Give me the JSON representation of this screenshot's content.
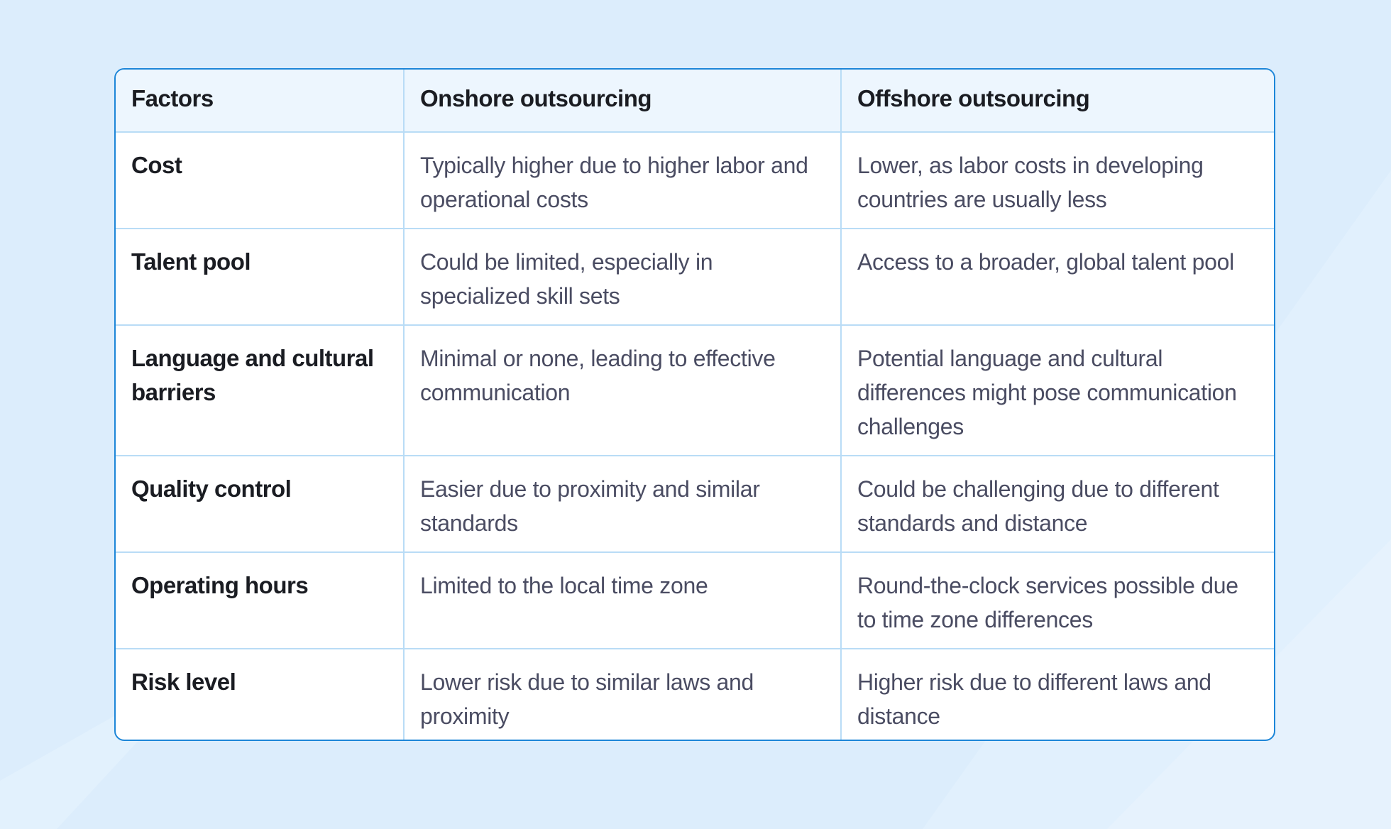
{
  "table": {
    "headers": [
      "Factors",
      "Onshore outsourcing",
      "Offshore outsourcing"
    ],
    "rows": [
      {
        "factor": "Cost",
        "onshore": "Typically higher due to higher labor and operational costs",
        "offshore": "Lower, as labor costs in developing countries are usually less"
      },
      {
        "factor": "Talent pool",
        "onshore": "Could be limited, especially in specialized skill sets",
        "offshore": "Access to a broader, global talent pool"
      },
      {
        "factor": "Language and cultural barriers",
        "onshore": "Minimal or none, leading to effective communication",
        "offshore": "Potential language and cultural differences might pose communication challenges"
      },
      {
        "factor": "Quality control",
        "onshore": "Easier due to proximity and similar standards",
        "offshore": "Could be challenging due to different standards and distance"
      },
      {
        "factor": "Operating hours",
        "onshore": "Limited to the local time zone",
        "offshore": "Round-the-clock services possible due to time zone differences"
      },
      {
        "factor": "Risk level",
        "onshore": "Lower risk due to similar laws and proximity",
        "offshore": "Higher risk due to different laws and distance"
      }
    ]
  },
  "colors": {
    "background": "#dcedfc",
    "border_accent": "#1d86d8",
    "grid_line": "#b9dcf6",
    "header_bg": "#edf6fe",
    "factor_text": "#1a1c22",
    "desc_text": "#4a4c62"
  }
}
